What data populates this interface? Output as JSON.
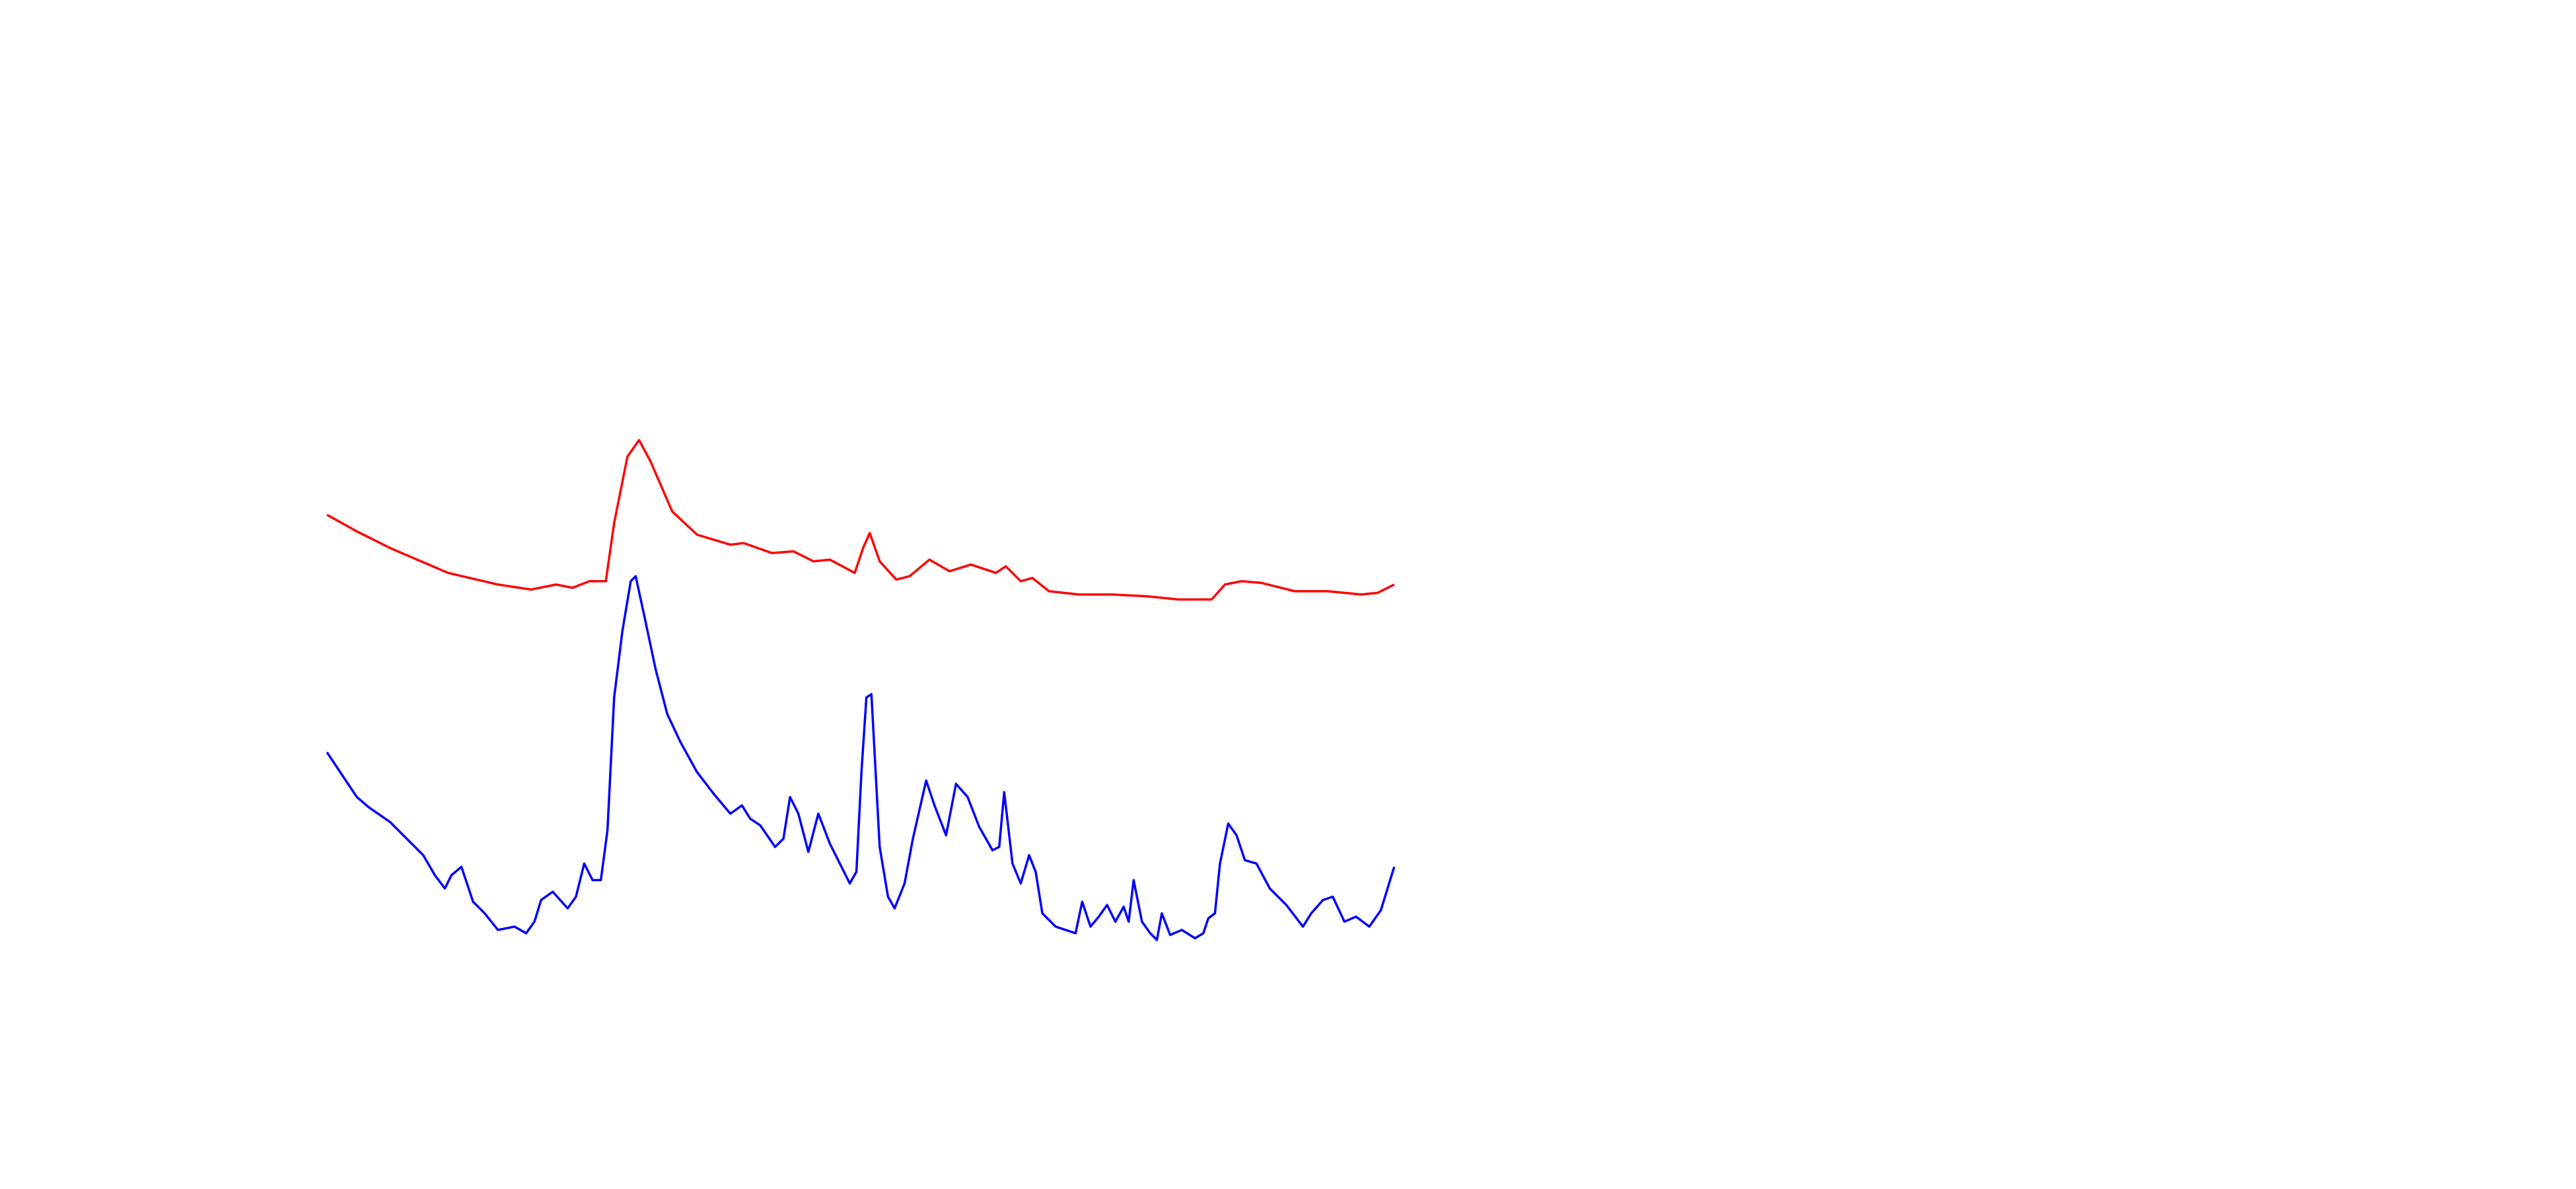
{
  "chart_data": {
    "type": "line",
    "xlim": [
      0,
      1552
    ],
    "ylim": [
      0,
      716
    ],
    "series": [
      {
        "color": "#ff0000",
        "x": [
          197,
          215,
          235,
          270,
          300,
          320,
          335,
          345,
          355,
          365,
          370,
          378,
          385,
          392,
          405,
          420,
          440,
          448,
          465,
          478,
          490,
          500,
          515,
          520,
          524,
          530,
          540,
          548,
          560,
          572,
          585,
          600,
          606,
          615,
          622,
          632,
          650,
          670,
          690,
          710,
          730,
          738,
          748,
          760,
          780,
          800,
          820,
          830,
          840
        ],
        "values": [
          406,
          396,
          386,
          371,
          364,
          361,
          364,
          362,
          366,
          366,
          401,
          441,
          451,
          438,
          408,
          394,
          388,
          389,
          383,
          384,
          378,
          379,
          371,
          386,
          395,
          378,
          367,
          369,
          379,
          372,
          376,
          371,
          375,
          366,
          368,
          360,
          358,
          358,
          357,
          355,
          355,
          364,
          366,
          365,
          360,
          360,
          358,
          359,
          364
        ]
      },
      {
        "color": "#0000ff",
        "x": [
          197,
          205,
          215,
          222,
          235,
          245,
          255,
          262,
          268,
          272,
          278,
          285,
          292,
          300,
          310,
          317,
          322,
          326,
          333,
          342,
          347,
          352,
          357,
          362,
          366,
          370,
          375,
          380,
          383,
          388,
          395,
          402,
          410,
          420,
          430,
          440,
          447,
          452,
          458,
          467,
          472,
          476,
          481,
          487,
          493,
          500,
          507,
          512,
          516,
          519,
          522,
          525,
          530,
          535,
          539,
          545,
          550,
          558,
          563,
          570,
          576,
          583,
          590,
          598,
          602,
          605,
          610,
          615,
          620,
          624,
          628,
          636,
          642,
          648,
          652,
          657,
          662,
          667,
          672,
          677,
          680,
          683,
          688,
          693,
          697,
          700,
          705,
          712,
          720,
          725,
          728,
          732,
          735,
          740,
          745,
          750,
          757,
          765,
          775,
          785,
          790,
          797,
          803,
          810,
          817,
          825,
          832,
          840
        ],
        "values": [
          263,
          251,
          236,
          230,
          221,
          211,
          201,
          189,
          181,
          189,
          194,
          173,
          166,
          156,
          158,
          154,
          161,
          174,
          179,
          169,
          176,
          196,
          186,
          186,
          216,
          296,
          336,
          366,
          369,
          346,
          313,
          286,
          269,
          251,
          238,
          226,
          231,
          223,
          219,
          206,
          211,
          236,
          226,
          203,
          226,
          208,
          194,
          184,
          191,
          251,
          296,
          298,
          206,
          176,
          169,
          184,
          211,
          246,
          231,
          213,
          244,
          236,
          218,
          204,
          206,
          239,
          196,
          184,
          201,
          191,
          166,
          158,
          156,
          154,
          173,
          158,
          164,
          171,
          161,
          170,
          161,
          186,
          161,
          154,
          150,
          166,
          153,
          156,
          151,
          154,
          163,
          166,
          196,
          220,
          213,
          198,
          196,
          181,
          171,
          158,
          166,
          174,
          176,
          161,
          164,
          158,
          168,
          194
        ]
      }
    ]
  }
}
